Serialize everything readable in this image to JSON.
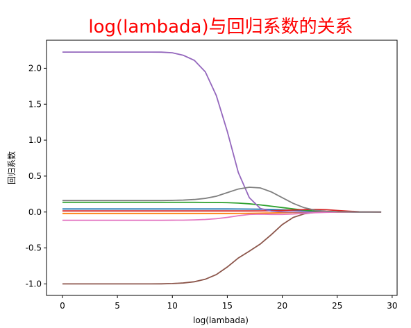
{
  "chart_data": {
    "type": "line",
    "title": "log(lambada)与回归系数的关系",
    "xlabel": "log(lambada)",
    "ylabel": "回归系数",
    "xlim": [
      -1.45,
      30.45
    ],
    "ylim": [
      -1.16,
      2.39
    ],
    "xticks": [
      "0",
      "5",
      "10",
      "15",
      "20",
      "25",
      "30"
    ],
    "yticks": [
      "-1.0",
      "-0.5",
      "0.0",
      "0.5",
      "1.0",
      "1.5",
      "2.0"
    ],
    "grid": false,
    "x": [
      0,
      1,
      2,
      3,
      4,
      5,
      6,
      7,
      8,
      9,
      10,
      11,
      12,
      13,
      14,
      15,
      16,
      17,
      18,
      19,
      20,
      21,
      22,
      23,
      24,
      25,
      26,
      27,
      28,
      29
    ],
    "series": [
      {
        "color": "#1f77b4",
        "values": [
          0.043,
          0.043,
          0.043,
          0.043,
          0.043,
          0.043,
          0.043,
          0.043,
          0.043,
          0.043,
          0.043,
          0.043,
          0.043,
          0.043,
          0.043,
          0.043,
          0.042,
          0.041,
          0.039,
          0.035,
          0.03,
          0.025,
          0.019,
          0.012,
          0.007,
          0.003,
          0.001,
          0.0005,
          0.0002,
          0.0
        ]
      },
      {
        "color": "#ff7f0e",
        "values": [
          -0.02,
          -0.02,
          -0.02,
          -0.02,
          -0.02,
          -0.02,
          -0.02,
          -0.02,
          -0.02,
          -0.02,
          -0.02,
          -0.02,
          -0.02,
          -0.02,
          -0.02,
          -0.02,
          -0.019,
          -0.018,
          -0.016,
          -0.013,
          -0.01,
          -0.007,
          -0.004,
          -0.002,
          -0.001,
          -0.0005,
          -0.0002,
          -0.0001,
          0.0,
          0.0
        ]
      },
      {
        "color": "#2ca02c",
        "values": [
          0.135,
          0.135,
          0.135,
          0.135,
          0.135,
          0.135,
          0.135,
          0.135,
          0.135,
          0.135,
          0.135,
          0.135,
          0.135,
          0.134,
          0.133,
          0.13,
          0.124,
          0.114,
          0.099,
          0.081,
          0.062,
          0.043,
          0.026,
          0.013,
          0.006,
          0.002,
          0.001,
          0.0003,
          0.0001,
          0.0
        ]
      },
      {
        "color": "#d62728",
        "values": [
          0.015,
          0.015,
          0.015,
          0.015,
          0.015,
          0.015,
          0.015,
          0.015,
          0.015,
          0.015,
          0.015,
          0.015,
          0.015,
          0.015,
          0.015,
          0.015,
          0.015,
          0.015,
          0.016,
          0.018,
          0.022,
          0.028,
          0.034,
          0.036,
          0.032,
          0.022,
          0.012,
          0.005,
          0.002,
          0.0
        ]
      },
      {
        "color": "#9467bd",
        "values": [
          2.225,
          2.225,
          2.225,
          2.225,
          2.225,
          2.225,
          2.225,
          2.225,
          2.225,
          2.224,
          2.215,
          2.18,
          2.11,
          1.95,
          1.62,
          1.12,
          0.55,
          0.2,
          0.05,
          0.012,
          0.003,
          0.001,
          0.0003,
          0.0001,
          0.0,
          0.0,
          0.0,
          0.0,
          0.0,
          0.0
        ]
      },
      {
        "color": "#8c564b",
        "values": [
          -1.0,
          -1.0,
          -1.0,
          -1.0,
          -1.0,
          -1.0,
          -1.0,
          -1.0,
          -1.0,
          -0.999,
          -0.995,
          -0.987,
          -0.97,
          -0.935,
          -0.87,
          -0.765,
          -0.64,
          -0.545,
          -0.445,
          -0.315,
          -0.175,
          -0.075,
          -0.025,
          -0.005,
          0.0,
          0.003,
          0.003,
          0.002,
          0.001,
          0.0
        ]
      },
      {
        "color": "#e377c2",
        "values": [
          -0.115,
          -0.115,
          -0.115,
          -0.115,
          -0.115,
          -0.115,
          -0.115,
          -0.115,
          -0.115,
          -0.115,
          -0.114,
          -0.113,
          -0.11,
          -0.104,
          -0.093,
          -0.075,
          -0.052,
          -0.034,
          -0.03,
          -0.033,
          -0.034,
          -0.028,
          -0.018,
          -0.009,
          -0.004,
          -0.0015,
          -0.0005,
          -0.0002,
          0.0,
          0.0
        ]
      },
      {
        "color": "#7f7f7f",
        "values": [
          0.16,
          0.16,
          0.16,
          0.16,
          0.16,
          0.16,
          0.16,
          0.16,
          0.16,
          0.16,
          0.162,
          0.166,
          0.174,
          0.19,
          0.22,
          0.27,
          0.32,
          0.345,
          0.335,
          0.28,
          0.2,
          0.12,
          0.06,
          0.025,
          0.01,
          0.004,
          0.0015,
          0.0005,
          0.0002,
          0.0
        ]
      }
    ]
  }
}
